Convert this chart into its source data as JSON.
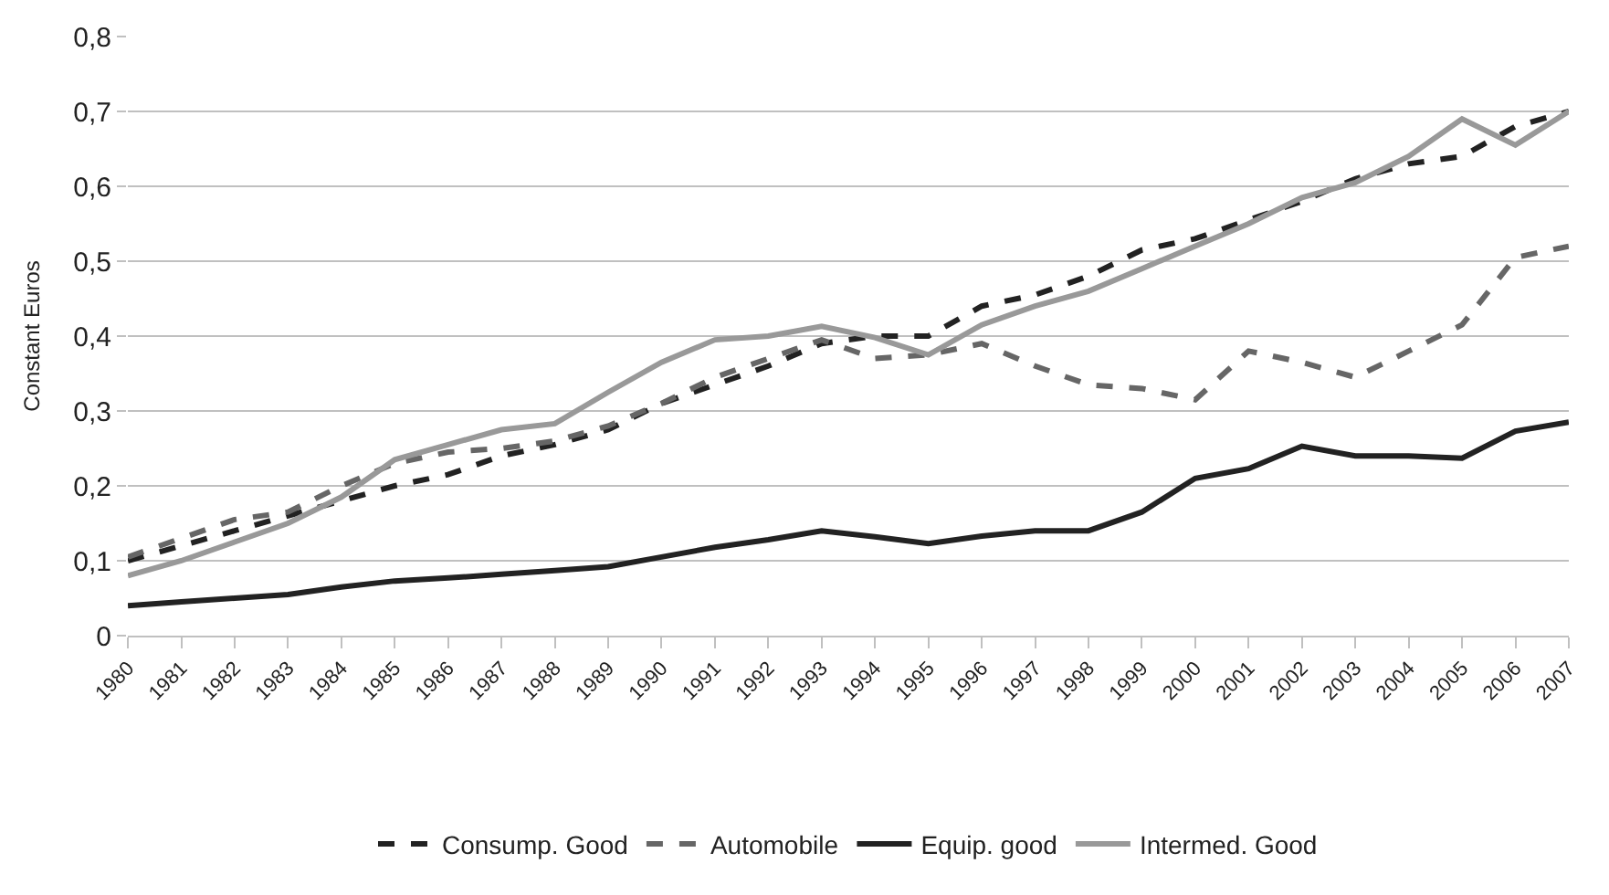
{
  "chart_data": {
    "type": "line",
    "ylabel": "Constant Euros",
    "categories": [
      "1980",
      "1981",
      "1982",
      "1983",
      "1984",
      "1985",
      "1986",
      "1987",
      "1988",
      "1989",
      "1990",
      "1991",
      "1992",
      "1993",
      "1994",
      "1995",
      "1996",
      "1997",
      "1998",
      "1999",
      "2000",
      "2001",
      "2002",
      "2003",
      "2004",
      "2005",
      "2006",
      "2007"
    ],
    "series": [
      {
        "name": "Consump. Good",
        "color": "#222222",
        "line_style": "dashed",
        "values": [
          0.1,
          0.12,
          0.14,
          0.16,
          0.18,
          0.2,
          0.215,
          0.24,
          0.255,
          0.275,
          0.31,
          0.335,
          0.36,
          0.39,
          0.4,
          0.4,
          0.44,
          0.455,
          0.48,
          0.515,
          0.53,
          0.555,
          0.58,
          0.61,
          0.63,
          0.64,
          0.68,
          0.7
        ]
      },
      {
        "name": "Automobile",
        "color": "#666666",
        "line_style": "dashed",
        "values": [
          0.105,
          0.13,
          0.155,
          0.165,
          0.2,
          0.23,
          0.245,
          0.25,
          0.26,
          0.28,
          0.31,
          0.345,
          0.37,
          0.395,
          0.37,
          0.375,
          0.39,
          0.36,
          0.335,
          0.33,
          0.315,
          0.38,
          0.365,
          0.345,
          0.38,
          0.415,
          0.505,
          0.52
        ]
      },
      {
        "name": "Equip. good",
        "color": "#222222",
        "line_style": "solid",
        "values": [
          0.04,
          0.045,
          0.05,
          0.055,
          0.065,
          0.073,
          0.077,
          0.082,
          0.087,
          0.092,
          0.105,
          0.118,
          0.128,
          0.14,
          0.132,
          0.123,
          0.133,
          0.14,
          0.14,
          0.165,
          0.21,
          0.223,
          0.253,
          0.24,
          0.24,
          0.237,
          0.273,
          0.285
        ]
      },
      {
        "name": "Intermed. Good",
        "color": "#999999",
        "line_style": "solid",
        "values": [
          0.08,
          0.1,
          0.125,
          0.15,
          0.185,
          0.235,
          0.255,
          0.275,
          0.283,
          0.325,
          0.365,
          0.395,
          0.4,
          0.413,
          0.398,
          0.375,
          0.415,
          0.44,
          0.46,
          0.49,
          0.52,
          0.55,
          0.585,
          0.605,
          0.64,
          0.69,
          0.655,
          0.7
        ]
      }
    ],
    "ylim": [
      0,
      0.8
    ],
    "yticks": [
      0,
      {
        "value": 0.1,
        "label": "0,1"
      },
      {
        "value": 0.2,
        "label": "0,2"
      },
      {
        "value": 0.3,
        "label": "0,3"
      },
      {
        "value": 0.4,
        "label": "0,4"
      },
      {
        "value": 0.5,
        "label": "0,5"
      },
      {
        "value": 0.6,
        "label": "0,6"
      },
      {
        "value": 0.7,
        "label": "0,7"
      },
      {
        "value": 0.8,
        "label": "0,8"
      }
    ],
    "grid": "y",
    "legend": "bottom",
    "marker": "none"
  }
}
